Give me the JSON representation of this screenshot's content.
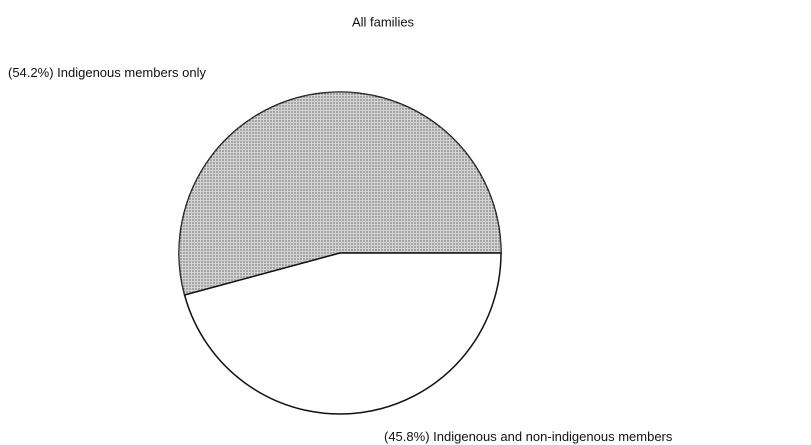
{
  "chart_data": {
    "type": "pie",
    "title": "All families",
    "categories": [
      "Indigenous members only",
      "Indigenous and non-indigenous members"
    ],
    "values": [
      54.2,
      45.8
    ],
    "value_labels": [
      "(54.2%)",
      "(45.8%)"
    ],
    "colors": [
      "#bcbcbc",
      "#ffffff"
    ]
  }
}
